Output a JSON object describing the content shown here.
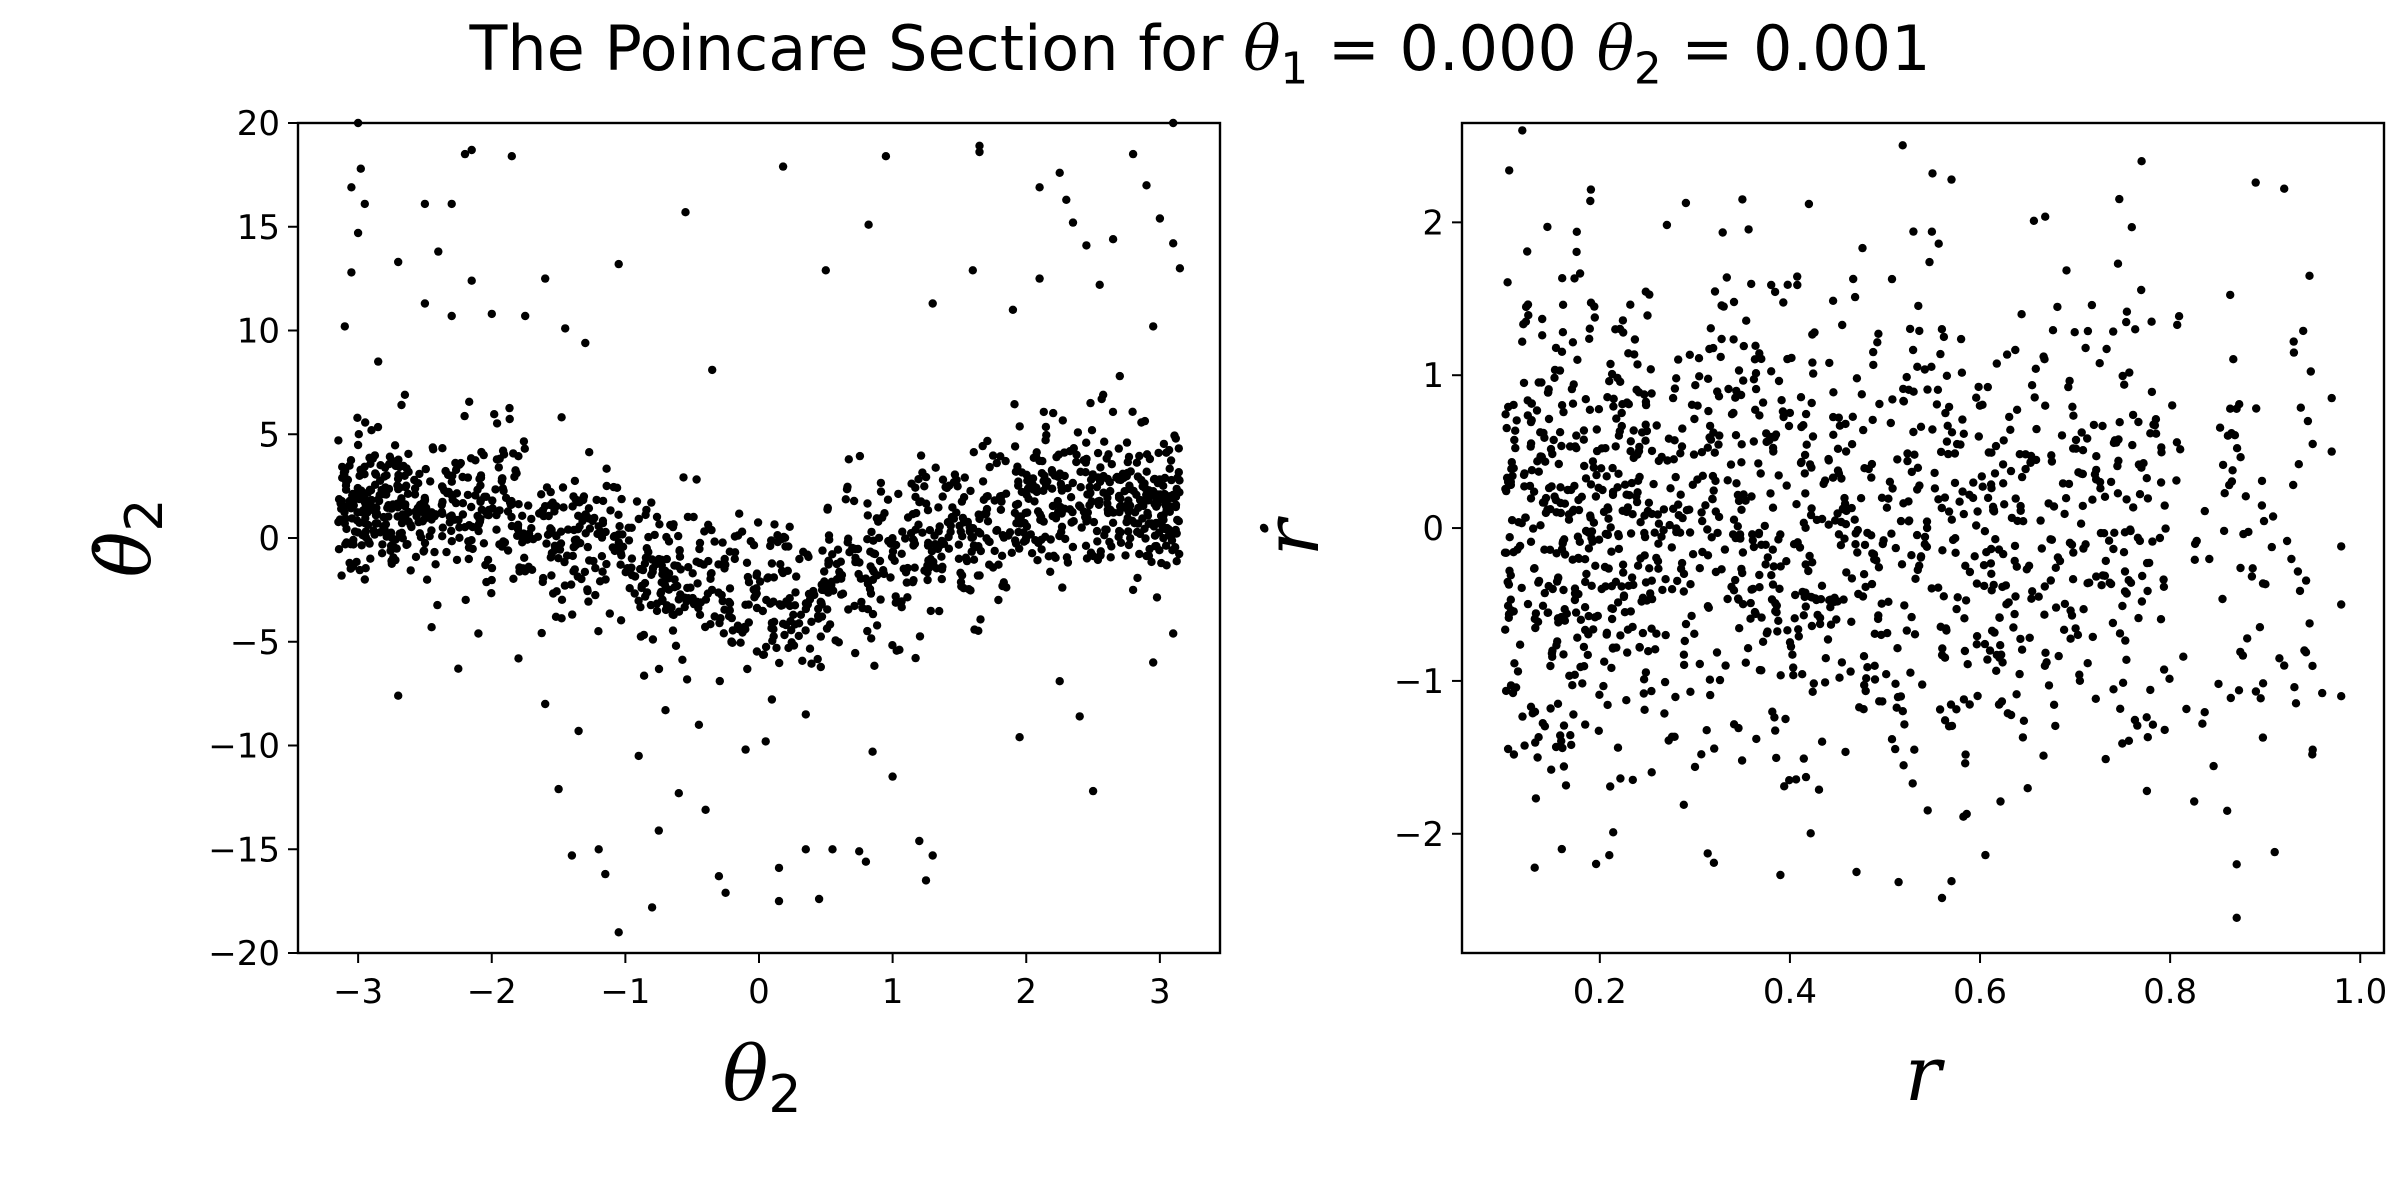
{
  "figure": {
    "title_prefix": "The Poincare Section for ",
    "title_var1": "θ",
    "title_sub1": "1",
    "title_mid": " = 0.000 ",
    "title_var2": "θ",
    "title_sub2": "2",
    "title_suffix": " = 0.001",
    "point_color": "#000000",
    "background": "#ffffff"
  },
  "chart_data": [
    {
      "type": "scatter",
      "title": "",
      "xlabel": "θ₂",
      "ylabel": "θ̇₂",
      "xlabel_var": "θ",
      "xlabel_sub": "2",
      "ylabel_var": "θ̇",
      "ylabel_sub": "2",
      "xlim": [
        -3.45,
        3.45
      ],
      "ylim": [
        -20,
        20
      ],
      "xticks": [
        -3,
        -2,
        -1,
        0,
        1,
        2,
        3
      ],
      "xtick_labels": [
        "−3",
        "−2",
        "−1",
        "0",
        "1",
        "2",
        "3"
      ],
      "yticks": [
        -20,
        -15,
        -10,
        -5,
        0,
        5,
        10,
        15,
        20
      ],
      "ytick_labels": [
        "−20",
        "−15",
        "−10",
        "−5",
        "0",
        "5",
        "10",
        "15",
        "20"
      ],
      "grid": false,
      "legend": "none",
      "series": [
        {
          "points": [
            [
              -3.0,
              20.0
            ],
            [
              -2.98,
              17.8
            ],
            [
              -3.05,
              16.9
            ],
            [
              -2.95,
              16.1
            ],
            [
              -3.0,
              14.7
            ],
            [
              -3.05,
              12.8
            ],
            [
              -2.7,
              13.3
            ],
            [
              -2.4,
              13.8
            ],
            [
              -2.5,
              16.1
            ],
            [
              -2.3,
              16.1
            ],
            [
              -2.2,
              18.5
            ],
            [
              -2.15,
              18.7
            ],
            [
              -1.85,
              18.4
            ],
            [
              -2.15,
              12.4
            ],
            [
              -1.6,
              12.5
            ],
            [
              -2.5,
              11.3
            ],
            [
              -2.3,
              10.7
            ],
            [
              -2.0,
              10.8
            ],
            [
              -1.75,
              10.7
            ],
            [
              -1.45,
              10.1
            ],
            [
              -1.3,
              9.4
            ],
            [
              -1.05,
              13.2
            ],
            [
              -0.55,
              15.7
            ],
            [
              0.18,
              17.9
            ],
            [
              0.95,
              18.4
            ],
            [
              0.82,
              15.1
            ],
            [
              0.5,
              12.9
            ],
            [
              -0.35,
              8.1
            ],
            [
              1.6,
              12.9
            ],
            [
              1.3,
              11.3
            ],
            [
              1.65,
              18.9
            ],
            [
              1.65,
              18.6
            ],
            [
              2.1,
              16.9
            ],
            [
              2.25,
              17.6
            ],
            [
              2.3,
              16.3
            ],
            [
              2.35,
              15.2
            ],
            [
              2.45,
              14.1
            ],
            [
              2.65,
              14.4
            ],
            [
              2.8,
              18.5
            ],
            [
              2.9,
              17.0
            ],
            [
              3.0,
              15.4
            ],
            [
              3.1,
              14.2
            ],
            [
              3.1,
              20.0
            ],
            [
              3.15,
              13.0
            ],
            [
              2.55,
              12.2
            ],
            [
              2.1,
              12.5
            ],
            [
              1.9,
              11.0
            ],
            [
              2.95,
              10.2
            ],
            [
              -2.95,
              -2.0
            ],
            [
              -2.7,
              -7.6
            ],
            [
              -2.25,
              -6.3
            ],
            [
              -2.1,
              -4.6
            ],
            [
              -1.6,
              -8.0
            ],
            [
              -1.5,
              -12.1
            ],
            [
              -1.35,
              -9.3
            ],
            [
              -1.4,
              -15.3
            ],
            [
              -1.2,
              -15.0
            ],
            [
              -1.15,
              -16.2
            ],
            [
              -1.05,
              -19.0
            ],
            [
              -0.9,
              -10.5
            ],
            [
              -0.8,
              -17.8
            ],
            [
              -0.75,
              -14.1
            ],
            [
              -0.6,
              -12.3
            ],
            [
              -0.4,
              -13.1
            ],
            [
              -0.3,
              -16.3
            ],
            [
              -0.25,
              -17.1
            ],
            [
              -0.1,
              -10.2
            ],
            [
              0.05,
              -9.8
            ],
            [
              0.15,
              -15.9
            ],
            [
              0.15,
              -17.5
            ],
            [
              0.35,
              -15.0
            ],
            [
              0.45,
              -17.4
            ],
            [
              0.55,
              -15.0
            ],
            [
              0.75,
              -15.1
            ],
            [
              0.8,
              -15.6
            ],
            [
              0.85,
              -10.3
            ],
            [
              1.2,
              -14.6
            ],
            [
              1.25,
              -16.5
            ],
            [
              1.3,
              -15.3
            ],
            [
              1.0,
              -11.5
            ],
            [
              1.95,
              -9.6
            ],
            [
              2.25,
              -6.9
            ],
            [
              2.4,
              -8.6
            ],
            [
              2.5,
              -12.2
            ],
            [
              2.95,
              -6.0
            ],
            [
              3.1,
              -4.6
            ],
            [
              0.35,
              -8.5
            ],
            [
              -0.45,
              -9.0
            ],
            [
              -0.7,
              -8.3
            ],
            [
              -1.8,
              -5.8
            ],
            [
              -2.45,
              -4.3
            ],
            [
              2.8,
              -2.5
            ],
            [
              -3.1,
              10.2
            ],
            [
              -2.85,
              8.5
            ],
            [
              -2.65,
              6.9
            ],
            [
              2.7,
              7.8
            ]
          ],
          "cloud": [
            {
              "x": [
                -3.15,
                -2.6
              ],
              "center": 1.5,
              "spread": 2.2,
              "n": 190
            },
            {
              "x": [
                -2.6,
                -1.8
              ],
              "center": 1.5,
              "spread": 2.4,
              "n": 170
            },
            {
              "x": [
                -1.8,
                -1.0
              ],
              "center": -0.2,
              "spread": 2.4,
              "n": 150
            },
            {
              "x": [
                -1.0,
                -0.4
              ],
              "center": -2.2,
              "spread": 2.3,
              "n": 120
            },
            {
              "x": [
                -0.4,
                0.0
              ],
              "center": -2.8,
              "spread": 2.4,
              "n": 70
            },
            {
              "x": [
                0.0,
                0.5
              ],
              "center": -2.8,
              "spread": 2.5,
              "n": 90
            },
            {
              "x": [
                0.5,
                1.2
              ],
              "center": -1.5,
              "spread": 2.6,
              "n": 130
            },
            {
              "x": [
                1.2,
                1.9
              ],
              "center": 0.3,
              "spread": 2.6,
              "n": 140
            },
            {
              "x": [
                1.9,
                2.6
              ],
              "center": 2.0,
              "spread": 2.5,
              "n": 170
            },
            {
              "x": [
                2.6,
                3.15
              ],
              "center": 1.8,
              "spread": 2.3,
              "n": 190
            }
          ]
        }
      ]
    },
    {
      "type": "scatter",
      "title": "",
      "xlabel": "r",
      "ylabel": "ṙ",
      "xlabel_var": "r",
      "xlabel_sub": "",
      "ylabel_var": "ṙ",
      "ylabel_sub": "",
      "xlim": [
        0.055,
        1.025
      ],
      "ylim": [
        -2.78,
        2.65
      ],
      "xticks": [
        0.2,
        0.4,
        0.6,
        0.8,
        1.0
      ],
      "xtick_labels": [
        "0.2",
        "0.4",
        "0.6",
        "0.8",
        "1.0"
      ],
      "yticks": [
        -2,
        -1,
        0,
        1,
        2
      ],
      "ytick_labels": [
        "−2",
        "−1",
        "0",
        "1",
        "2"
      ],
      "grid": false,
      "legend": "none",
      "series": [
        {
          "points": [
            [
              0.87,
              -2.55
            ],
            [
              0.89,
              2.26
            ],
            [
              0.92,
              2.22
            ],
            [
              0.77,
              2.4
            ],
            [
              0.55,
              2.32
            ],
            [
              0.57,
              2.28
            ],
            [
              0.19,
              2.14
            ],
            [
              0.35,
              2.15
            ],
            [
              0.42,
              2.12
            ],
            [
              0.98,
              -1.1
            ],
            [
              0.95,
              -1.45
            ],
            [
              0.96,
              -1.08
            ],
            [
              0.91,
              -2.12
            ],
            [
              0.86,
              -1.85
            ],
            [
              0.87,
              -2.2
            ],
            [
              0.56,
              -2.42
            ],
            [
              0.57,
              -2.31
            ],
            [
              0.47,
              -2.25
            ],
            [
              0.39,
              -2.27
            ],
            [
              0.32,
              -2.19
            ],
            [
              0.21,
              -2.14
            ],
            [
              0.16,
              -2.1
            ],
            [
              0.97,
              0.85
            ],
            [
              0.98,
              -0.12
            ],
            [
              0.93,
              1.22
            ],
            [
              0.94,
              1.29
            ],
            [
              0.97,
              0.5
            ],
            [
              0.95,
              0.55
            ],
            [
              0.98,
              -0.5
            ],
            [
              0.92,
              -0.9
            ]
          ],
          "cloud": [
            {
              "x": [
                0.1,
                0.25
              ],
              "center": 0.0,
              "spread": 1.05,
              "n": 420
            },
            {
              "x": [
                0.25,
                0.45
              ],
              "center": 0.0,
              "spread": 1.1,
              "n": 380
            },
            {
              "x": [
                0.45,
                0.65
              ],
              "center": 0.0,
              "spread": 1.05,
              "n": 330
            },
            {
              "x": [
                0.65,
                0.8
              ],
              "center": 0.0,
              "spread": 1.0,
              "n": 200
            },
            {
              "x": [
                0.8,
                0.95
              ],
              "center": 0.0,
              "spread": 0.95,
              "n": 80
            }
          ]
        }
      ]
    }
  ]
}
